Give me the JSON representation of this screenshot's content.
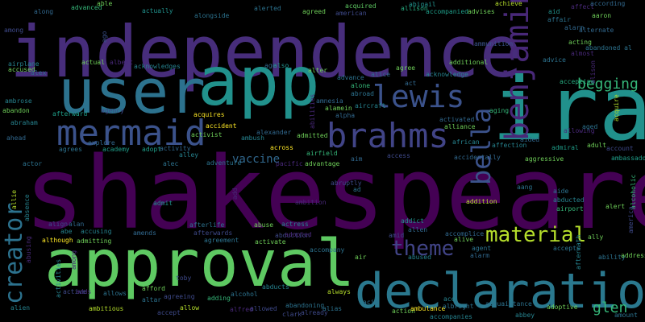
{
  "words": [
    {
      "text": "shakespeare",
      "color": "#440154",
      "weight": 100
    },
    {
      "text": "independence",
      "color": "#472d7b",
      "weight": 78
    },
    {
      "text": "approval",
      "color": "#5ec962",
      "weight": 76
    },
    {
      "text": "declaration",
      "color": "#2a788e",
      "weight": 72
    },
    {
      "text": "ira",
      "color": "#21918c",
      "weight": 70
    },
    {
      "text": "app",
      "color": "#21918c",
      "weight": 64
    },
    {
      "text": "user",
      "color": "#2c728e",
      "weight": 58
    },
    {
      "text": "mermaid",
      "color": "#3b528b",
      "weight": 42
    },
    {
      "text": "brahms",
      "color": "#414487",
      "weight": 38
    },
    {
      "text": "benjamin",
      "color": "#482878",
      "weight": 32
    },
    {
      "text": "lewis",
      "color": "#3b528b",
      "weight": 32
    },
    {
      "text": "bella",
      "color": "#3b528b",
      "weight": 30
    },
    {
      "text": "creator",
      "color": "#2c728e",
      "weight": 28
    },
    {
      "text": "material",
      "color": "#b5de2b",
      "weight": 22
    },
    {
      "text": "theme",
      "color": "#414487",
      "weight": 22
    },
    {
      "text": "begging",
      "color": "#35b779",
      "weight": 16
    },
    {
      "text": "glen",
      "color": "#35b779",
      "weight": 15
    },
    {
      "text": "vaccine",
      "color": "#31688e",
      "weight": 14
    },
    {
      "text": "along",
      "color": "#31688e",
      "weight": 7
    },
    {
      "text": "advanced",
      "color": "#35b779",
      "weight": 7
    },
    {
      "text": "able",
      "color": "#6ece58",
      "weight": 7
    },
    {
      "text": "actually",
      "color": "#21918c",
      "weight": 7
    },
    {
      "text": "alerted",
      "color": "#2c728e",
      "weight": 7
    },
    {
      "text": "agreed",
      "color": "#6ece58",
      "weight": 7
    },
    {
      "text": "acquired",
      "color": "#5ec962",
      "weight": 7
    },
    {
      "text": "american",
      "color": "#3e4989",
      "weight": 7
    },
    {
      "text": "allison",
      "color": "#27ad81",
      "weight": 7
    },
    {
      "text": "abigail",
      "color": "#21918c",
      "weight": 7
    },
    {
      "text": "achieve",
      "color": "#b5de2b",
      "weight": 7
    },
    {
      "text": "accompanied",
      "color": "#1f9e89",
      "weight": 7
    },
    {
      "text": "advises",
      "color": "#6ece58",
      "weight": 7
    },
    {
      "text": "affect",
      "color": "#482878",
      "weight": 7
    },
    {
      "text": "according",
      "color": "#31688e",
      "weight": 7
    },
    {
      "text": "among",
      "color": "#3e4989",
      "weight": 7
    },
    {
      "text": "alongside",
      "color": "#2c728e",
      "weight": 7
    },
    {
      "text": "ago",
      "color": "#3b528b",
      "weight": 7
    },
    {
      "text": "ammunition",
      "color": "#3b528b",
      "weight": 7
    },
    {
      "text": "affair",
      "color": "#2c728e",
      "weight": 7
    },
    {
      "text": "aaron",
      "color": "#6ece58",
      "weight": 7
    },
    {
      "text": "airplane",
      "color": "#26828e",
      "weight": 7
    },
    {
      "text": "acknowledges",
      "color": "#26828e",
      "weight": 7
    },
    {
      "text": "albert",
      "color": "#482878",
      "weight": 7
    },
    {
      "text": "actual",
      "color": "#6ece58",
      "weight": 7
    },
    {
      "text": "accused",
      "color": "#6ece58",
      "weight": 7
    },
    {
      "text": "alex",
      "color": "#31688e",
      "weight": 7
    },
    {
      "text": "aid",
      "color": "#21918c",
      "weight": 7
    },
    {
      "text": "alarm",
      "color": "#31688e",
      "weight": 7
    },
    {
      "text": "acting",
      "color": "#6ece58",
      "weight": 7
    },
    {
      "text": "alternate",
      "color": "#31688e",
      "weight": 7
    },
    {
      "text": "almost",
      "color": "#482878",
      "weight": 7
    },
    {
      "text": "abandoned al",
      "color": "#2c728e",
      "weight": 7
    },
    {
      "text": "advice",
      "color": "#2c728e",
      "weight": 7
    },
    {
      "text": "additional",
      "color": "#6ece58",
      "weight": 7
    },
    {
      "text": "agree",
      "color": "#6ece58",
      "weight": 7
    },
    {
      "text": "age",
      "color": "#31688e",
      "weight": 7
    },
    {
      "text": "also",
      "color": "#21918c",
      "weight": 7
    },
    {
      "text": "alter",
      "color": "#6ece58",
      "weight": 7
    },
    {
      "text": "advance",
      "color": "#2c728e",
      "weight": 7
    },
    {
      "text": "alone",
      "color": "#35b779",
      "weight": 7
    },
    {
      "text": "alice",
      "color": "#31688e",
      "weight": 7
    },
    {
      "text": "acknowledge",
      "color": "#26828e",
      "weight": 7
    },
    {
      "text": "accepting",
      "color": "#27ad81",
      "weight": 7
    },
    {
      "text": "alison",
      "color": "#482878",
      "weight": 7
    },
    {
      "text": "act",
      "color": "#31688e",
      "weight": 7
    },
    {
      "text": "abroad",
      "color": "#2c728e",
      "weight": 7
    },
    {
      "text": "ambrose",
      "color": "#26828e",
      "weight": 7
    },
    {
      "text": "abandon",
      "color": "#6ece58",
      "weight": 7
    },
    {
      "text": "afterward",
      "color": "#1f9e89",
      "weight": 7
    },
    {
      "text": "agency",
      "color": "#3e4989",
      "weight": 7
    },
    {
      "text": "acquires",
      "color": "#fde725",
      "weight": 7
    },
    {
      "text": "amnesia",
      "color": "#31688e",
      "weight": 7
    },
    {
      "text": "alamein",
      "color": "#6ece58",
      "weight": 7
    },
    {
      "text": "aircraft",
      "color": "#26828e",
      "weight": 7
    },
    {
      "text": "abilities",
      "color": "#482878",
      "weight": 7
    },
    {
      "text": "alpha",
      "color": "#31688e",
      "weight": 7
    },
    {
      "text": "activated",
      "color": "#31688e",
      "weight": 7
    },
    {
      "text": "aging",
      "color": "#35b779",
      "weight": 7
    },
    {
      "text": "alliance",
      "color": "#6ece58",
      "weight": 7
    },
    {
      "text": "abraham",
      "color": "#26828e",
      "weight": 7
    },
    {
      "text": "accident",
      "color": "#fde725",
      "weight": 7
    },
    {
      "text": "activist",
      "color": "#6ece58",
      "weight": 7
    },
    {
      "text": "alexander",
      "color": "#31688e",
      "weight": 7
    },
    {
      "text": "allowing",
      "color": "#482878",
      "weight": 7
    },
    {
      "text": "aged",
      "color": "#2c728e",
      "weight": 7
    },
    {
      "text": "acquire",
      "color": "#b5de2b",
      "weight": 7
    },
    {
      "text": "ahead",
      "color": "#31688e",
      "weight": 7
    },
    {
      "text": "agrees",
      "color": "#2c728e",
      "weight": 7
    },
    {
      "text": "explore",
      "color": "#31688e",
      "weight": 7
    },
    {
      "text": "academy",
      "color": "#1f9e89",
      "weight": 7
    },
    {
      "text": "adopt",
      "color": "#1f9e89",
      "weight": 7
    },
    {
      "text": "activity",
      "color": "#31688e",
      "weight": 7
    },
    {
      "text": "alley",
      "color": "#26828e",
      "weight": 7
    },
    {
      "text": "admitted",
      "color": "#6ece58",
      "weight": 7
    },
    {
      "text": "ambush",
      "color": "#26828e",
      "weight": 7
    },
    {
      "text": "across",
      "color": "#fde725",
      "weight": 7
    },
    {
      "text": "airfield",
      "color": "#35b779",
      "weight": 7
    },
    {
      "text": "african",
      "color": "#26828e",
      "weight": 7
    },
    {
      "text": "affection",
      "color": "#26828e",
      "weight": 7
    },
    {
      "text": "aided",
      "color": "#31688e",
      "weight": 7
    },
    {
      "text": "admiral",
      "color": "#1f9e89",
      "weight": 7
    },
    {
      "text": "adult",
      "color": "#6ece58",
      "weight": 7
    },
    {
      "text": "account",
      "color": "#3e4989",
      "weight": 7
    },
    {
      "text": "actor",
      "color": "#2c728e",
      "weight": 7
    },
    {
      "text": "alec",
      "color": "#2c728e",
      "weight": 7
    },
    {
      "text": "adventure",
      "color": "#2c728e",
      "weight": 7
    },
    {
      "text": "pacific",
      "color": "#482878",
      "weight": 7
    },
    {
      "text": "advantage",
      "color": "#6ece58",
      "weight": 7
    },
    {
      "text": "aim",
      "color": "#31688e",
      "weight": 7
    },
    {
      "text": "access",
      "color": "#3e4989",
      "weight": 7
    },
    {
      "text": "accidentally",
      "color": "#31688e",
      "weight": 7
    },
    {
      "text": "aggressive",
      "color": "#6ece58",
      "weight": 7
    },
    {
      "text": "ambassador",
      "color": "#1f9e89",
      "weight": 7
    },
    {
      "text": "allie",
      "color": "#b5de2b",
      "weight": 7
    },
    {
      "text": "abruptly",
      "color": "#3e4989",
      "weight": 7
    },
    {
      "text": "ad",
      "color": "#2c728e",
      "weight": 7
    },
    {
      "text": "add",
      "color": "#482878",
      "weight": 7
    },
    {
      "text": "admit",
      "color": "#21918c",
      "weight": 7
    },
    {
      "text": "ambition",
      "color": "#482878",
      "weight": 7
    },
    {
      "text": "addition",
      "color": "#b5de2b",
      "weight": 7
    },
    {
      "text": "aang",
      "color": "#2c728e",
      "weight": 7
    },
    {
      "text": "aide",
      "color": "#2c728e",
      "weight": 7
    },
    {
      "text": "abducted",
      "color": "#26828e",
      "weight": 7
    },
    {
      "text": "airport",
      "color": "#35b779",
      "weight": 7
    },
    {
      "text": "alcoholic",
      "color": "#35b779",
      "weight": 7
    },
    {
      "text": "alert",
      "color": "#6ece58",
      "weight": 7
    },
    {
      "text": "absence",
      "color": "#26828e",
      "weight": 7
    },
    {
      "text": "align",
      "color": "#3e4989",
      "weight": 7
    },
    {
      "text": "alan",
      "color": "#31688e",
      "weight": 7
    },
    {
      "text": "abe",
      "color": "#26828e",
      "weight": 7
    },
    {
      "text": "accusing",
      "color": "#26828e",
      "weight": 7
    },
    {
      "text": "amends",
      "color": "#31688e",
      "weight": 7
    },
    {
      "text": "afterlife",
      "color": "#2c728e",
      "weight": 7
    },
    {
      "text": "afterwards",
      "color": "#3e4989",
      "weight": 7
    },
    {
      "text": "abduction",
      "color": "#3e4989",
      "weight": 7
    },
    {
      "text": "abuse",
      "color": "#6ece58",
      "weight": 7
    },
    {
      "text": "actress",
      "color": "#26828e",
      "weight": 7
    },
    {
      "text": "adopted",
      "color": "#482878",
      "weight": 7
    },
    {
      "text": "accompany",
      "color": "#2c728e",
      "weight": 7
    },
    {
      "text": "addict",
      "color": "#21918c",
      "weight": 7
    },
    {
      "text": "allen",
      "color": "#31688e",
      "weight": 7
    },
    {
      "text": "accomplice",
      "color": "#31688e",
      "weight": 7
    },
    {
      "text": "alive",
      "color": "#6ece58",
      "weight": 7
    },
    {
      "text": "amid",
      "color": "#3e4989",
      "weight": 7
    },
    {
      "text": "abused",
      "color": "#26828e",
      "weight": 7
    },
    {
      "text": "agreement",
      "color": "#2c728e",
      "weight": 7
    },
    {
      "text": "activate",
      "color": "#6ece58",
      "weight": 7
    },
    {
      "text": "although",
      "color": "#fde725",
      "weight": 7
    },
    {
      "text": "admitting",
      "color": "#6ece58",
      "weight": 7
    },
    {
      "text": "ally",
      "color": "#6ece58",
      "weight": 7
    },
    {
      "text": "america",
      "color": "#3e4989",
      "weight": 7
    },
    {
      "text": "accepts",
      "color": "#2c728e",
      "weight": 7
    },
    {
      "text": "agent",
      "color": "#2c728e",
      "weight": 7
    },
    {
      "text": "alarm",
      "color": "#31688e",
      "weight": 7
    },
    {
      "text": "ability",
      "color": "#2c728e",
      "weight": 7
    },
    {
      "text": "address",
      "color": "#6ece58",
      "weight": 7
    },
    {
      "text": "aftermath",
      "color": "#26828e",
      "weight": 7
    },
    {
      "text": "air",
      "color": "#6ece58",
      "weight": 7
    },
    {
      "text": "abusing",
      "color": "#482878",
      "weight": 7
    },
    {
      "text": "among",
      "color": "#482878",
      "weight": 7
    },
    {
      "text": "adds",
      "color": "#482878",
      "weight": 7
    },
    {
      "text": "allows",
      "color": "#2c728e",
      "weight": 7
    },
    {
      "text": "active",
      "color": "#3e4989",
      "weight": 7
    },
    {
      "text": "ambitious",
      "color": "#b5de2b",
      "weight": 7
    },
    {
      "text": "afford",
      "color": "#6ece58",
      "weight": 7
    },
    {
      "text": "agreeing",
      "color": "#3e4989",
      "weight": 7
    },
    {
      "text": "adding",
      "color": "#35b779",
      "weight": 7
    },
    {
      "text": "alcohol",
      "color": "#2c728e",
      "weight": 7
    },
    {
      "text": "abducts",
      "color": "#26828e",
      "weight": 7
    },
    {
      "text": "always",
      "color": "#b5de2b",
      "weight": 7
    },
    {
      "text": "ace",
      "color": "#26828e",
      "weight": 7
    },
    {
      "text": "acquaintance",
      "color": "#2c728e",
      "weight": 7
    },
    {
      "text": "alien",
      "color": "#26828e",
      "weight": 7
    },
    {
      "text": "activities",
      "color": "#26828e",
      "weight": 7
    },
    {
      "text": "altar",
      "color": "#2c728e",
      "weight": 7
    },
    {
      "text": "allow",
      "color": "#b5de2b",
      "weight": 7
    },
    {
      "text": "allowed",
      "color": "#3e4989",
      "weight": 7
    },
    {
      "text": "abandoning",
      "color": "#2c728e",
      "weight": 7
    },
    {
      "text": "alias",
      "color": "#2c728e",
      "weight": 7
    },
    {
      "text": "acid",
      "color": "#2c728e",
      "weight": 7
    },
    {
      "text": "action",
      "color": "#6ece58",
      "weight": 7
    },
    {
      "text": "ambulance",
      "color": "#fde725",
      "weight": 7
    },
    {
      "text": "albright",
      "color": "#2c728e",
      "weight": 7
    },
    {
      "text": "adoptive",
      "color": "#6ece58",
      "weight": 7
    },
    {
      "text": "accept",
      "color": "#3e4989",
      "weight": 7
    },
    {
      "text": "alfred",
      "color": "#482878",
      "weight": 7
    },
    {
      "text": "clark",
      "color": "#3e4989",
      "weight": 7
    },
    {
      "text": "already",
      "color": "#3e4989",
      "weight": 7
    },
    {
      "text": "accompanies",
      "color": "#26828e",
      "weight": 7
    },
    {
      "text": "abbey",
      "color": "#26828e",
      "weight": 7
    },
    {
      "text": "amount",
      "color": "#2c728e",
      "weight": 7
    },
    {
      "text": "toby",
      "color": "#3e4989",
      "weight": 7
    }
  ]
}
